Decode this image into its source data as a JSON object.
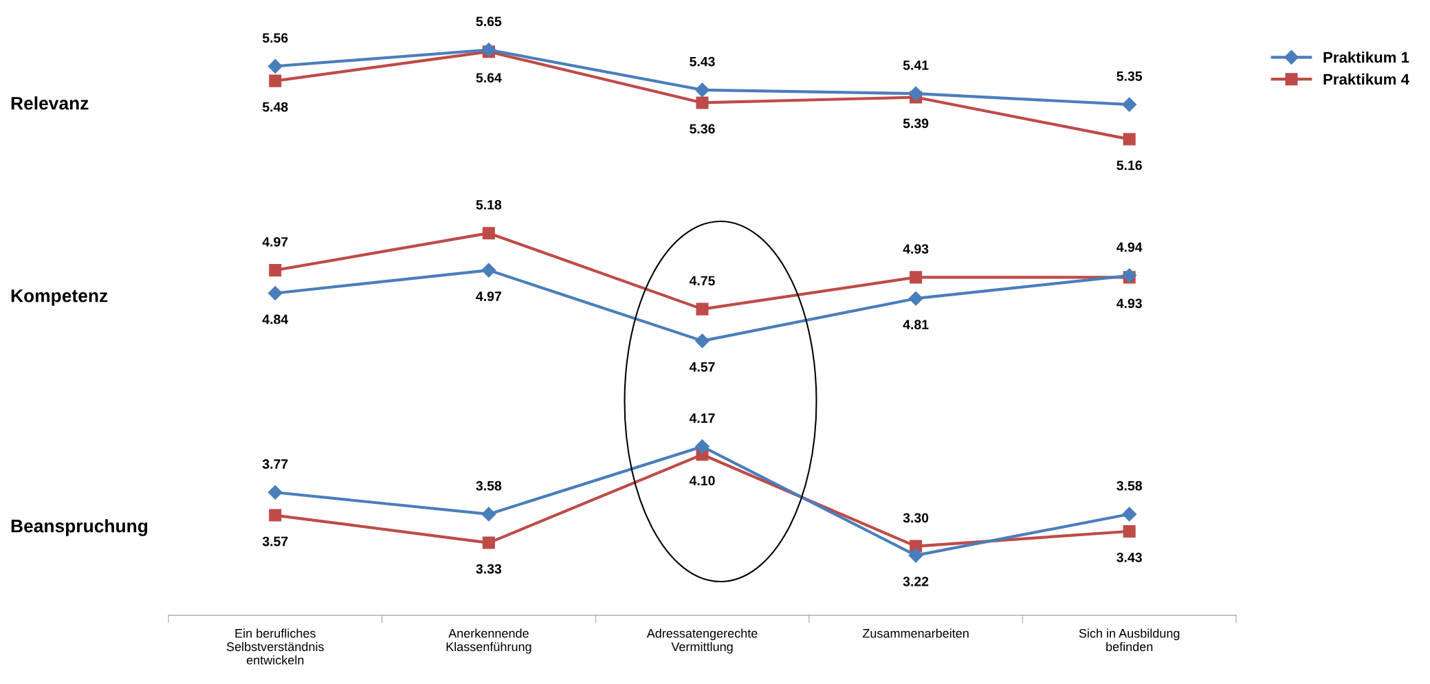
{
  "chart_data": [
    {
      "type": "line",
      "title": "Relevanz",
      "tick_labels": false,
      "legend": "top right",
      "series": [
        {
          "name": "Praktikum 1",
          "color": "#4a7ebb",
          "marker": "diamond",
          "values": [
            5.56,
            5.65,
            5.43,
            5.41,
            5.35
          ],
          "value_labels": [
            "5.56",
            "5.65",
            "5.43",
            "5.41",
            "5.35"
          ]
        },
        {
          "name": "Praktikum 4",
          "color": "#be4b48",
          "marker": "square",
          "values": [
            5.48,
            5.64,
            5.36,
            5.39,
            5.16
          ],
          "value_labels": [
            "5.48",
            "5.64",
            "5.36",
            "5.39",
            "5.16"
          ]
        }
      ]
    },
    {
      "type": "line",
      "title": "Kompetenz",
      "tick_labels": false,
      "series": [
        {
          "color": "#4a7ebb",
          "marker": "diamond",
          "values": [
            4.84,
            4.97,
            4.57,
            4.81,
            4.94
          ],
          "value_labels": [
            "4.84",
            "4.97",
            "4.57",
            "4.81",
            "4.94"
          ]
        },
        {
          "color": "#be4b48",
          "marker": "square",
          "values": [
            4.97,
            5.18,
            4.75,
            4.93,
            4.93
          ],
          "value_labels": [
            "4.97",
            "5.18",
            "4.75",
            "4.93",
            "4.93"
          ]
        }
      ]
    },
    {
      "type": "line",
      "title": "Beanspruchung",
      "categories": [
        "Ein berufliches\nSelbstverständnis\nentwickeln",
        "Anerkennende\nKlassenführung",
        "Adressatengerechte\nVermittlung",
        "Zusammenarbeiten",
        "Sich in Ausbildung\nbefinden"
      ],
      "tick_labels": "x",
      "series": [
        {
          "color": "#4a7ebb",
          "marker": "diamond",
          "values": [
            3.77,
            3.58,
            4.17,
            3.22,
            3.58
          ],
          "value_labels": [
            "3.77",
            "3.58",
            "4.17",
            "3.22",
            "3.58"
          ]
        },
        {
          "color": "#be4b48",
          "marker": "square",
          "values": [
            3.57,
            3.33,
            4.1,
            3.3,
            3.43
          ],
          "value_labels": [
            "3.57",
            "3.33",
            "4.10",
            "3.30",
            "3.43"
          ]
        }
      ]
    }
  ]
}
